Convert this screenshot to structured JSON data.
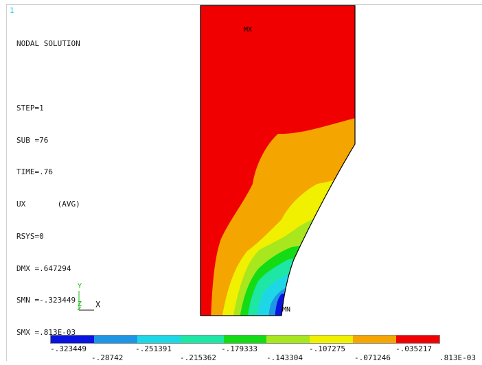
{
  "window_number": "1",
  "info_lines": [
    "NODAL SOLUTION",
    "",
    "STEP=1",
    "SUB =76",
    "TIME=.76",
    "UX       (AVG)",
    "RSYS=0",
    "DMX =.647294",
    "SMN =-.323449",
    "SMX =.813E-03"
  ],
  "labels": {
    "max_marker": "MX",
    "min_marker": "MN"
  },
  "triad": {
    "x": "X",
    "y": "Y",
    "z": "Z"
  },
  "legend": {
    "colors": [
      "#0a14e0",
      "#1e96e6",
      "#1ed7e6",
      "#1ee6a5",
      "#14dc14",
      "#a8e61e",
      "#f0f000",
      "#f5a500",
      "#f00000"
    ],
    "top_values": [
      "-.323449",
      "-.251391",
      "-.179333",
      "-.107275",
      "-.035217"
    ],
    "bottom_values": [
      "-.28742",
      "-.215362",
      "-.143304",
      "-.071246",
      ".813E-03"
    ]
  },
  "contour_colors": {
    "blue": "#0a14e0",
    "light_blue": "#1e96e6",
    "cyan": "#1ed7e6",
    "teal": "#1ee6a5",
    "green": "#14dc14",
    "yellow_green": "#a8e61e",
    "yellow": "#f0f000",
    "orange": "#f5a500",
    "red": "#f00000"
  }
}
